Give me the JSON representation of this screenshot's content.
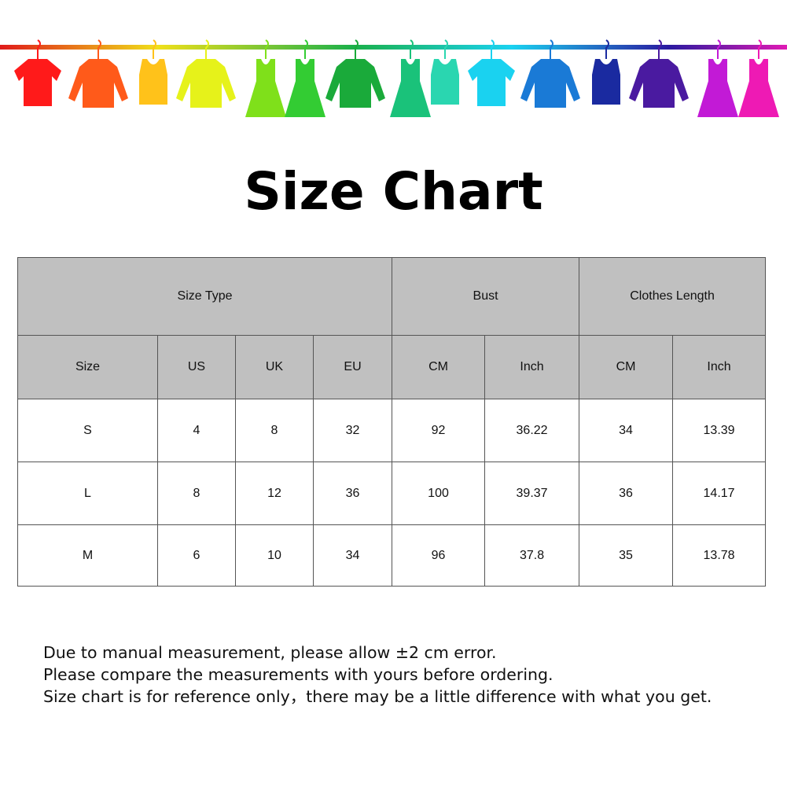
{
  "banner": {
    "icons": [
      "t-shirt-icon",
      "shirt-icon",
      "tank-top-icon",
      "sweater-icon",
      "dress-icon",
      "dress-icon",
      "sweater-icon",
      "dress-icon",
      "tank-top-icon",
      "t-shirt-icon",
      "shirt-icon",
      "tank-top-icon",
      "sweater-icon",
      "dress-icon",
      "dress-icon"
    ],
    "colors": [
      "#ff1a1a",
      "#ff5a1a",
      "#ffc21a",
      "#e6f21a",
      "#7fe01a",
      "#33cc33",
      "#1aaa3a",
      "#1ac27a",
      "#2ad6b0",
      "#1ad2f0",
      "#1a7ad6",
      "#1a2aa0",
      "#4a1aa0",
      "#c21ad6",
      "#ee1ab4"
    ]
  },
  "title": "Size Chart",
  "table": {
    "group_headers": [
      "Size Type",
      "Bust",
      "Clothes Length"
    ],
    "columns": [
      "Size",
      "US",
      "UK",
      "EU",
      "CM",
      "Inch",
      "CM",
      "Inch"
    ],
    "rows": [
      [
        "S",
        "4",
        "8",
        "32",
        "92",
        "36.22",
        "34",
        "13.39"
      ],
      [
        "L",
        "8",
        "12",
        "36",
        "100",
        "39.37",
        "36",
        "14.17"
      ],
      [
        "M",
        "6",
        "10",
        "34",
        "96",
        "37.8",
        "35",
        "13.78"
      ]
    ]
  },
  "notes": [
    "Due to manual measurement, please allow ±2 cm error.",
    "Please compare the measurements with yours before ordering.",
    "Size chart is for reference only，there may be a little difference with what you get."
  ]
}
